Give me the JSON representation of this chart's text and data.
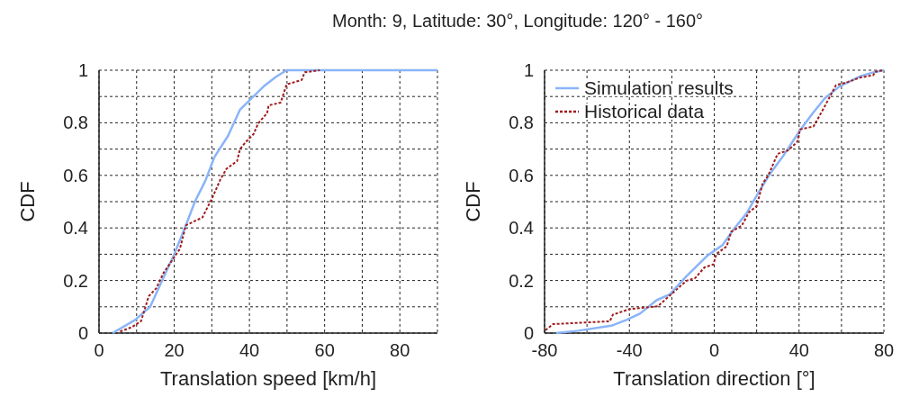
{
  "chart_data": [
    {
      "type": "line",
      "title": "Month: 9, Latitude: 30°, Longitude: 120° - 160°",
      "xlabel": "Translation speed [km/h]",
      "ylabel": "CDF",
      "xlim": [
        0,
        90
      ],
      "ylim": [
        0,
        1
      ],
      "xticks": [
        0,
        {
          "value": 10,
          "label": null
        },
        20,
        {
          "value": 30,
          "label": null
        },
        40,
        {
          "value": 50,
          "label": null
        },
        60,
        {
          "value": 70,
          "label": null
        },
        80,
        {
          "value": 90,
          "label": null
        }
      ],
      "yticks": [
        0,
        {
          "value": 0.1,
          "label": null
        },
        0.2,
        {
          "value": 0.3,
          "label": null
        },
        0.4,
        {
          "value": 0.5,
          "label": null
        },
        0.6,
        {
          "value": 0.7,
          "label": null
        },
        0.8,
        {
          "value": 0.9,
          "label": null
        },
        1
      ],
      "grid": true,
      "legend": false,
      "series": [
        {
          "color": "#8ab4f8",
          "line_style": "solid",
          "x": [
            3.6,
            9.6,
            13.6,
            16.8,
            20,
            23.1,
            25.5,
            28.3,
            30.7,
            34.3,
            37.5,
            40.7,
            43.9,
            47.1,
            49.9,
            90
          ],
          "values": [
            0,
            0.05,
            0.1,
            0.2,
            0.3,
            0.41,
            0.5,
            0.58,
            0.67,
            0.75,
            0.85,
            0.895,
            0.94,
            0.975,
            1,
            1
          ]
        },
        {
          "color": "#a01c1c",
          "line_style": "dashed",
          "x": [
            5.6,
            8.8,
            11.2,
            13.2,
            15.2,
            17.2,
            19.6,
            21.5,
            23.1,
            27.5,
            30.3,
            32.3,
            33.9,
            36.7,
            37.5,
            39.1,
            41.1,
            42.3,
            44.7,
            45.1,
            48.3,
            49.9,
            53.9,
            54.7,
            58.7
          ],
          "values": [
            0.006,
            0.023,
            0.046,
            0.14,
            0.17,
            0.23,
            0.28,
            0.32,
            0.41,
            0.44,
            0.52,
            0.585,
            0.625,
            0.654,
            0.7,
            0.728,
            0.757,
            0.797,
            0.837,
            0.866,
            0.877,
            0.946,
            0.963,
            0.992,
            1
          ]
        }
      ]
    },
    {
      "type": "line",
      "xlabel": "Translation direction [°]",
      "ylabel": "CDF",
      "xlim": [
        -80,
        80
      ],
      "ylim": [
        0,
        1
      ],
      "xticks": [
        -80,
        {
          "value": -60,
          "label": null
        },
        -40,
        {
          "value": -20,
          "label": null
        },
        0,
        {
          "value": 20,
          "label": null
        },
        40,
        {
          "value": 60,
          "label": null
        },
        80
      ],
      "yticks": [
        0,
        {
          "value": 0.1,
          "label": null
        },
        0.2,
        {
          "value": 0.3,
          "label": null
        },
        0.4,
        {
          "value": 0.5,
          "label": null
        },
        0.6,
        {
          "value": 0.7,
          "label": null
        },
        0.8,
        {
          "value": 0.9,
          "label": null
        },
        1
      ],
      "grid": true,
      "legend": "top left",
      "series": [
        {
          "name": "Simulation results",
          "color": "#8ab4f8",
          "line_style": "solid",
          "x": [
            -74.6,
            -64,
            -48.5,
            -41.4,
            -35,
            -27.2,
            -20.9,
            -13.1,
            -3.2,
            3.9,
            9.5,
            15.2,
            20.8,
            26.5,
            32.2,
            40.6,
            46.3,
            52,
            59,
            68.9,
            74.6,
            80
          ],
          "values": [
            0,
            0.009,
            0.028,
            0.05,
            0.074,
            0.125,
            0.148,
            0.216,
            0.295,
            0.335,
            0.398,
            0.455,
            0.534,
            0.608,
            0.67,
            0.773,
            0.835,
            0.892,
            0.938,
            0.977,
            0.991,
            1
          ]
        },
        {
          "name": "Historical data",
          "color": "#a01c1c",
          "line_style": "dashed",
          "x": [
            -79.6,
            -76,
            -49.2,
            -47.8,
            -40,
            -26.6,
            -20.2,
            -13.1,
            -8.9,
            -4.6,
            -0.4,
            1,
            5.9,
            8,
            13,
            16.4,
            20,
            22.8,
            25.6,
            29.9,
            34.8,
            39.1,
            40.5,
            46.8,
            51.8,
            57.4,
            63,
            68.7,
            75,
            75.8,
            80
          ],
          "values": [
            0.011,
            0.034,
            0.045,
            0.07,
            0.091,
            0.102,
            0.148,
            0.199,
            0.21,
            0.25,
            0.261,
            0.301,
            0.33,
            0.386,
            0.409,
            0.46,
            0.483,
            0.568,
            0.602,
            0.682,
            0.695,
            0.727,
            0.775,
            0.786,
            0.858,
            0.943,
            0.955,
            0.972,
            0.981,
            0.994,
            1
          ]
        }
      ]
    }
  ]
}
